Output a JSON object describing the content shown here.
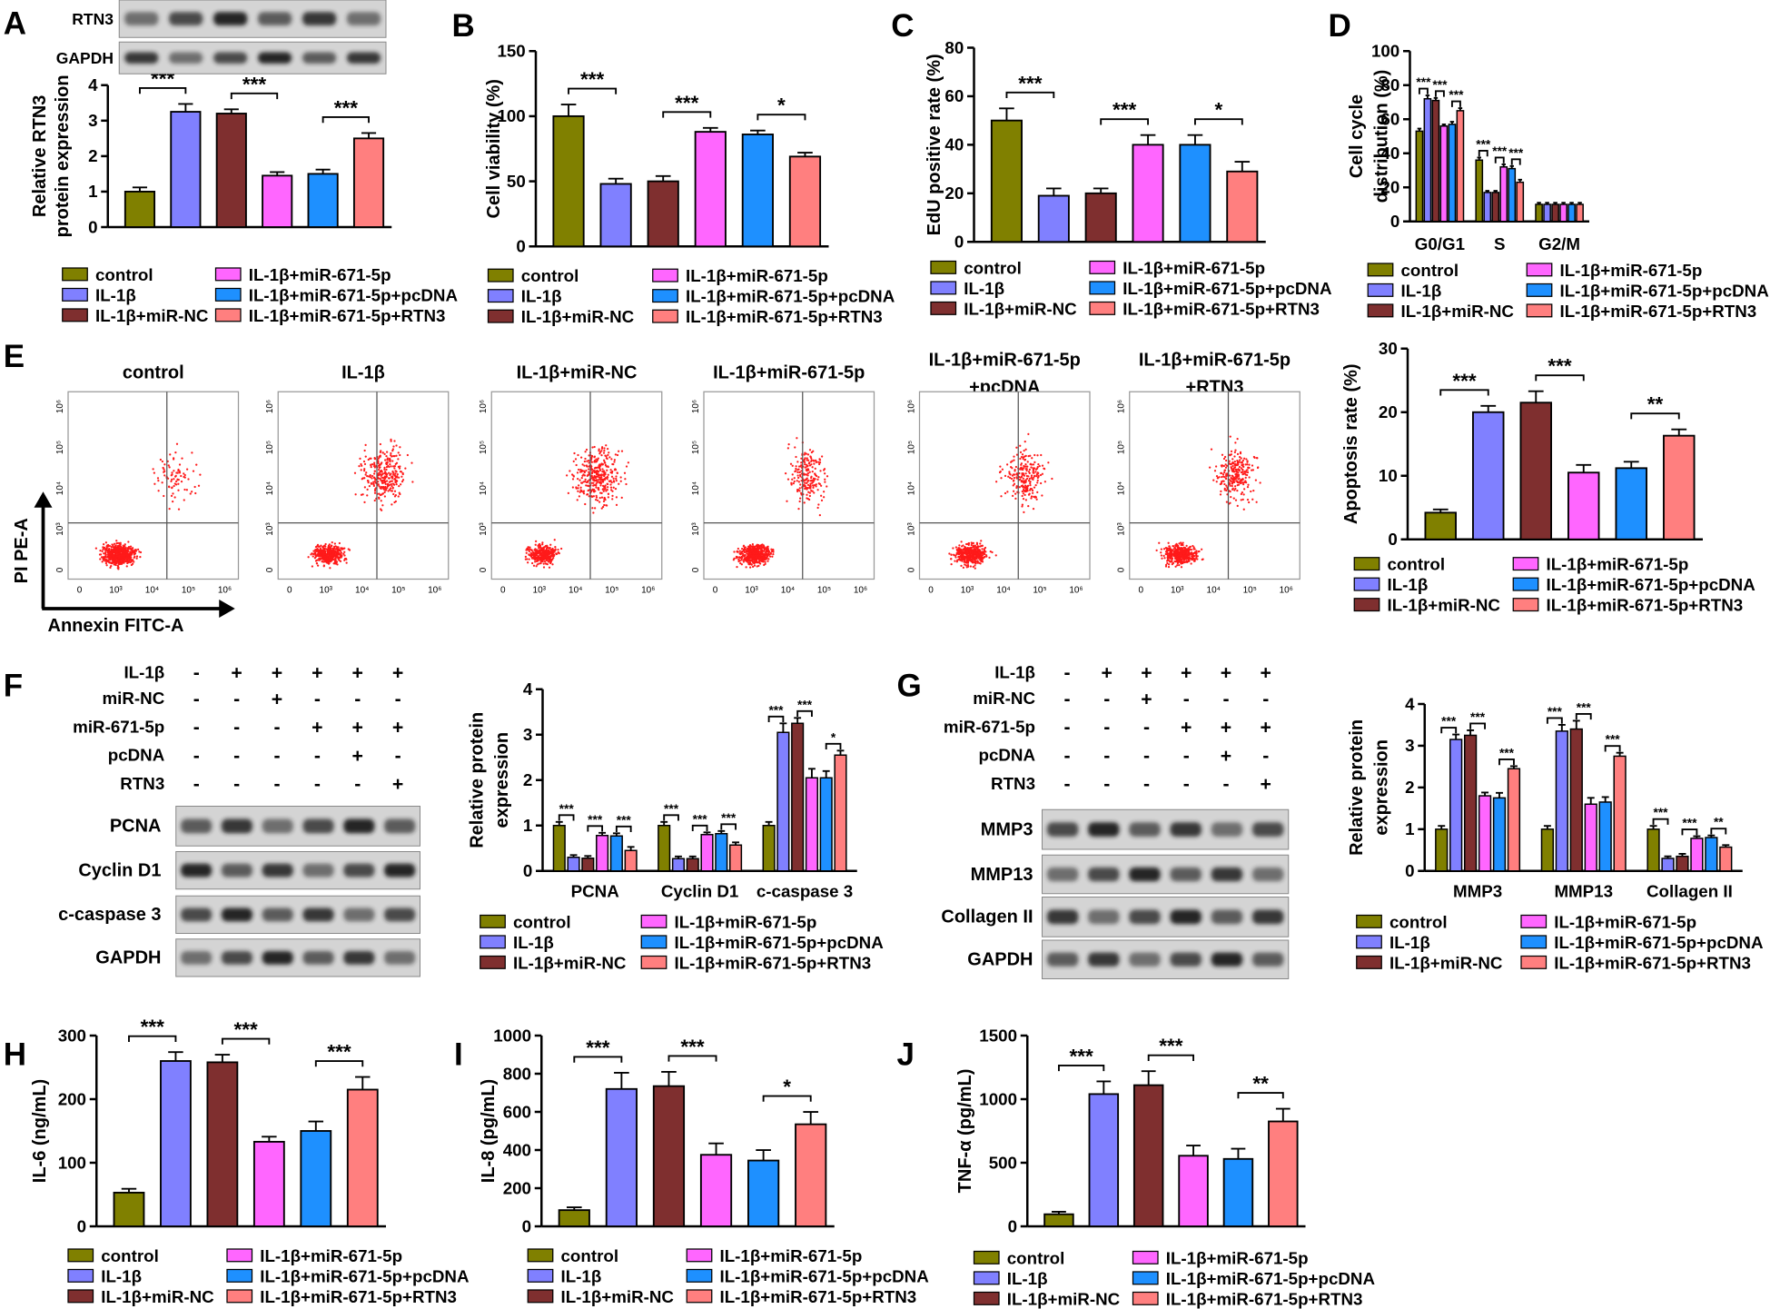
{
  "chart_data": [
    {
      "type": "bar",
      "panel_label": "A",
      "ylabel": [
        "Relative RTN3",
        "protein expression"
      ],
      "categories": [
        "control",
        "IL-1β",
        "IL-1β+miR-NC",
        "IL-1β+miR-671-5p",
        "IL-1β+miR-671-5p+pcDNA",
        "IL-1β+miR-671-5p+RTN3"
      ],
      "colors": [
        "#808000",
        "#8080ff",
        "#7f2f2f",
        "#ff66ff",
        "#1e90ff",
        "#ff7f7f"
      ],
      "values": [
        1.0,
        3.25,
        3.2,
        1.45,
        1.5,
        2.5
      ],
      "errors": [
        0.12,
        0.22,
        0.12,
        0.1,
        0.12,
        0.15
      ],
      "ylim": [
        0,
        4
      ],
      "yticks": [
        0,
        1,
        2,
        3,
        4
      ],
      "annotations": [
        "***",
        "***",
        "***"
      ]
    },
    {
      "type": "bar",
      "panel_label": "B",
      "ylabel": [
        "Cell viability (%)"
      ],
      "categories": [
        "control",
        "IL-1β",
        "IL-1β+miR-NC",
        "IL-1β+miR-671-5p",
        "IL-1β+miR-671-5p+pcDNA",
        "IL-1β+miR-671-5p+RTN3"
      ],
      "colors": [
        "#808000",
        "#8080ff",
        "#7f2f2f",
        "#ff66ff",
        "#1e90ff",
        "#ff7f7f"
      ],
      "values": [
        100,
        48,
        50,
        88,
        86,
        69
      ],
      "errors": [
        9,
        4,
        4,
        3,
        3,
        3
      ],
      "ylim": [
        0,
        150
      ],
      "yticks": [
        0,
        50,
        100,
        150
      ],
      "annotations": [
        "***",
        "***",
        "*"
      ]
    },
    {
      "type": "bar",
      "panel_label": "C",
      "ylabel": [
        "EdU positive rate (%)"
      ],
      "categories": [
        "control",
        "IL-1β",
        "IL-1β+miR-NC",
        "IL-1β+miR-671-5p",
        "IL-1β+miR-671-5p+pcDNA",
        "IL-1β+miR-671-5p+RTN3"
      ],
      "colors": [
        "#808000",
        "#8080ff",
        "#7f2f2f",
        "#ff66ff",
        "#1e90ff",
        "#ff7f7f"
      ],
      "values": [
        50,
        19,
        20,
        40,
        40,
        29
      ],
      "errors": [
        5,
        3,
        2,
        4,
        4,
        4
      ],
      "ylim": [
        0,
        80
      ],
      "yticks": [
        0,
        20,
        40,
        60,
        80
      ],
      "annotations": [
        "***",
        "***",
        "*"
      ]
    },
    {
      "type": "grouped_bar",
      "panel_label": "D",
      "ylabel": [
        "Cell cycle",
        "distribution (%)"
      ],
      "categories": [
        "G0/G1",
        "S",
        "G2/M"
      ],
      "series": [
        {
          "name": "control",
          "color": "#808000",
          "values": [
            53,
            36,
            10
          ],
          "errors": [
            1.5,
            1.5,
            1
          ]
        },
        {
          "name": "IL-1β",
          "color": "#8080ff",
          "values": [
            72,
            17,
            10
          ],
          "errors": [
            2,
            1,
            1
          ]
        },
        {
          "name": "IL-1β+miR-NC",
          "color": "#7f2f2f",
          "values": [
            71,
            17,
            10
          ],
          "errors": [
            1.5,
            1,
            1
          ]
        },
        {
          "name": "IL-1β+miR-671-5p",
          "color": "#ff66ff",
          "values": [
            56,
            32,
            10
          ],
          "errors": [
            1,
            1.5,
            1
          ]
        },
        {
          "name": "IL-1β+miR-671-5p+pcDNA",
          "color": "#1e90ff",
          "values": [
            57,
            31,
            10
          ],
          "errors": [
            1.5,
            1.5,
            1
          ]
        },
        {
          "name": "IL-1β+miR-671-5p+RTN3",
          "color": "#ff7f7f",
          "values": [
            65,
            23,
            10
          ],
          "errors": [
            1.5,
            1.5,
            1
          ]
        }
      ],
      "ylim": [
        0,
        100
      ],
      "yticks": [
        0,
        20,
        40,
        60,
        80,
        100
      ],
      "annotations": [
        [
          "***",
          "***",
          "***"
        ],
        [
          "***",
          "***",
          "***"
        ],
        []
      ]
    },
    {
      "type": "bar",
      "ylabel": [
        "Apoptosis rate (%)"
      ],
      "categories": [
        "control",
        "IL-1β",
        "IL-1β+miR-NC",
        "IL-1β+miR-671-5p",
        "IL-1β+miR-671-5p+pcDNA",
        "IL-1β+miR-671-5p+RTN3"
      ],
      "colors": [
        "#808000",
        "#8080ff",
        "#7f2f2f",
        "#ff66ff",
        "#1e90ff",
        "#ff7f7f"
      ],
      "values": [
        4.2,
        20,
        21.5,
        10.5,
        11.2,
        16.3
      ],
      "errors": [
        0.5,
        1,
        1.8,
        1.2,
        1,
        1
      ],
      "ylim": [
        0,
        30
      ],
      "yticks": [
        0,
        10,
        20,
        30
      ],
      "annotations": [
        "***",
        "***",
        "**"
      ]
    },
    {
      "type": "grouped_bar",
      "ylabel": [
        "Relative protein",
        "expression"
      ],
      "categories": [
        "PCNA",
        "Cyclin D1",
        "c-caspase 3"
      ],
      "series": [
        {
          "name": "control",
          "color": "#808000",
          "values": [
            1,
            1,
            1
          ],
          "errors": [
            0.08,
            0.08,
            0.08
          ]
        },
        {
          "name": "IL-1β",
          "color": "#8080ff",
          "values": [
            0.3,
            0.27,
            3.05
          ],
          "errors": [
            0.05,
            0.05,
            0.2
          ]
        },
        {
          "name": "IL-1β+miR-NC",
          "color": "#7f2f2f",
          "values": [
            0.28,
            0.27,
            3.25
          ],
          "errors": [
            0.05,
            0.05,
            0.12
          ]
        },
        {
          "name": "IL-1β+miR-671-5p",
          "color": "#ff66ff",
          "values": [
            0.78,
            0.8,
            2.05
          ],
          "errors": [
            0.06,
            0.05,
            0.2
          ]
        },
        {
          "name": "IL-1β+miR-671-5p+pcDNA",
          "color": "#1e90ff",
          "values": [
            0.77,
            0.82,
            2.05
          ],
          "errors": [
            0.06,
            0.06,
            0.15
          ]
        },
        {
          "name": "IL-1β+miR-671-5p+RTN3",
          "color": "#ff7f7f",
          "values": [
            0.45,
            0.57,
            2.55
          ],
          "errors": [
            0.08,
            0.06,
            0.1
          ]
        }
      ],
      "ylim": [
        0,
        4
      ],
      "yticks": [
        0,
        1,
        2,
        3,
        4
      ],
      "annotations": [
        [
          "***",
          "***",
          "***"
        ],
        [
          "***",
          "***",
          "***"
        ],
        [
          "***",
          "***",
          "*"
        ]
      ]
    },
    {
      "type": "grouped_bar",
      "ylabel": [
        "Relative protein",
        "expression"
      ],
      "categories": [
        "MMP3",
        "MMP13",
        "Collagen II"
      ],
      "series": [
        {
          "name": "control",
          "color": "#808000",
          "values": [
            1,
            1,
            1
          ],
          "errors": [
            0.08,
            0.08,
            0.08
          ]
        },
        {
          "name": "IL-1β",
          "color": "#8080ff",
          "values": [
            3.15,
            3.35,
            0.3
          ],
          "errors": [
            0.12,
            0.15,
            0.05
          ]
        },
        {
          "name": "IL-1β+miR-NC",
          "color": "#7f2f2f",
          "values": [
            3.25,
            3.4,
            0.35
          ],
          "errors": [
            0.12,
            0.2,
            0.06
          ]
        },
        {
          "name": "IL-1β+miR-671-5p",
          "color": "#ff66ff",
          "values": [
            1.8,
            1.6,
            0.78
          ],
          "errors": [
            0.08,
            0.15,
            0.05
          ]
        },
        {
          "name": "IL-1β+miR-671-5p+pcDNA",
          "color": "#1e90ff",
          "values": [
            1.75,
            1.65,
            0.8
          ],
          "errors": [
            0.12,
            0.12,
            0.05
          ]
        },
        {
          "name": "IL-1β+miR-671-5p+RTN3",
          "color": "#ff7f7f",
          "values": [
            2.45,
            2.75,
            0.57
          ],
          "errors": [
            0.06,
            0.08,
            0.05
          ]
        }
      ],
      "ylim": [
        0,
        4
      ],
      "yticks": [
        0,
        1,
        2,
        3,
        4
      ],
      "annotations": [
        [
          "***",
          "***",
          "***"
        ],
        [
          "***",
          "***",
          "***"
        ],
        [
          "***",
          "***",
          "**"
        ]
      ]
    },
    {
      "type": "bar",
      "panel_label": "H",
      "ylabel": [
        "IL-6 (ng/mL)"
      ],
      "categories": [
        "control",
        "IL-1β",
        "IL-1β+miR-NC",
        "IL-1β+miR-671-5p",
        "IL-1β+miR-671-5p+pcDNA",
        "IL-1β+miR-671-5p+RTN3"
      ],
      "colors": [
        "#808000",
        "#8080ff",
        "#7f2f2f",
        "#ff66ff",
        "#1e90ff",
        "#ff7f7f"
      ],
      "values": [
        53,
        260,
        258,
        133,
        150,
        215
      ],
      "errors": [
        6,
        14,
        12,
        8,
        15,
        20
      ],
      "ylim": [
        0,
        300
      ],
      "yticks": [
        0,
        100,
        200,
        300
      ],
      "annotations": [
        "***",
        "***",
        "***"
      ]
    },
    {
      "type": "bar",
      "panel_label": "I",
      "ylabel": [
        "IL-8 (pg/mL)"
      ],
      "categories": [
        "control",
        "IL-1β",
        "IL-1β+miR-NC",
        "IL-1β+miR-671-5p",
        "IL-1β+miR-671-5p+pcDNA",
        "IL-1β+miR-671-5p+RTN3"
      ],
      "colors": [
        "#808000",
        "#8080ff",
        "#7f2f2f",
        "#ff66ff",
        "#1e90ff",
        "#ff7f7f"
      ],
      "values": [
        85,
        720,
        735,
        375,
        345,
        535
      ],
      "errors": [
        15,
        85,
        75,
        60,
        55,
        65
      ],
      "ylim": [
        0,
        1000
      ],
      "yticks": [
        0,
        200,
        400,
        600,
        800,
        1000
      ],
      "annotations": [
        "***",
        "***",
        "*"
      ]
    },
    {
      "type": "bar",
      "panel_label": "J",
      "ylabel": [
        "TNF-α (pg/mL)"
      ],
      "categories": [
        "control",
        "IL-1β",
        "IL-1β+miR-NC",
        "IL-1β+miR-671-5p",
        "IL-1β+miR-671-5p+pcDNA",
        "IL-1β+miR-671-5p+RTN3"
      ],
      "colors": [
        "#808000",
        "#8080ff",
        "#7f2f2f",
        "#ff66ff",
        "#1e90ff",
        "#ff7f7f"
      ],
      "values": [
        95,
        1040,
        1110,
        555,
        530,
        825
      ],
      "errors": [
        20,
        100,
        110,
        80,
        80,
        100
      ],
      "ylim": [
        0,
        1500
      ],
      "yticks": [
        0,
        500,
        1000,
        1500
      ],
      "annotations": [
        "***",
        "***",
        "**"
      ]
    }
  ],
  "blots": [
    {
      "rows": [
        "RTN3",
        "GAPDH"
      ]
    },
    {
      "panel_label": "F",
      "treatments": [
        {
          "label": "IL-1β",
          "signs": [
            "-",
            "+",
            "+",
            "+",
            "+",
            "+"
          ]
        },
        {
          "label": "miR-NC",
          "signs": [
            "-",
            "-",
            "+",
            "-",
            "-",
            "-"
          ]
        },
        {
          "label": "miR-671-5p",
          "signs": [
            "-",
            "-",
            "-",
            "+",
            "+",
            "+"
          ]
        },
        {
          "label": "pcDNA",
          "signs": [
            "-",
            "-",
            "-",
            "-",
            "+",
            "-"
          ]
        },
        {
          "label": "RTN3",
          "signs": [
            "-",
            "-",
            "-",
            "-",
            "-",
            "+"
          ]
        }
      ],
      "rows": [
        "PCNA",
        "Cyclin D1",
        "c-caspase 3",
        "GAPDH"
      ]
    },
    {
      "panel_label": "G",
      "treatments": [
        {
          "label": "IL-1β",
          "signs": [
            "-",
            "+",
            "+",
            "+",
            "+",
            "+"
          ]
        },
        {
          "label": "miR-NC",
          "signs": [
            "-",
            "-",
            "+",
            "-",
            "-",
            "-"
          ]
        },
        {
          "label": "miR-671-5p",
          "signs": [
            "-",
            "-",
            "-",
            "+",
            "+",
            "+"
          ]
        },
        {
          "label": "pcDNA",
          "signs": [
            "-",
            "-",
            "-",
            "-",
            "+",
            "-"
          ]
        },
        {
          "label": "RTN3",
          "signs": [
            "-",
            "-",
            "-",
            "-",
            "-",
            "+"
          ]
        }
      ],
      "rows": [
        "MMP3",
        "MMP13",
        "Collagen II",
        "GAPDH"
      ]
    }
  ],
  "flow": {
    "panel_label": "E",
    "titles": [
      [
        "control"
      ],
      [
        "IL-1β"
      ],
      [
        "IL-1β+miR-NC"
      ],
      [
        "IL-1β+miR-671-5p"
      ],
      [
        "IL-1β+miR-671-5p",
        "+pcDNA"
      ],
      [
        "IL-1β+miR-671-5p",
        "+RTN3"
      ]
    ],
    "xlabel": "Annexin FITC-A",
    "ylabel": "PI PE-A",
    "xticks": [
      "0",
      "10³",
      "10⁴",
      "10⁵",
      "10⁶"
    ],
    "yticks": [
      "0",
      "10³",
      "10⁴",
      "10⁵",
      "10⁶"
    ]
  }
}
